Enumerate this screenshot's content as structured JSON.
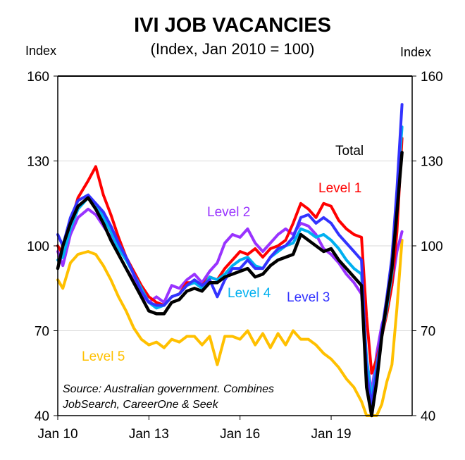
{
  "chart_data": {
    "type": "line",
    "title": "IVI JOB VACANCIES",
    "subtitle": "(Index, Jan 2010 = 100)",
    "ylabel_left": "Index",
    "ylabel_right": "Index",
    "ylim": [
      40,
      160
    ],
    "yticks": [
      40,
      70,
      100,
      130,
      160
    ],
    "xlim": [
      "2010-01",
      "2021-09"
    ],
    "xticks": [
      "Jan 10",
      "Jan 13",
      "Jan 16",
      "Jan 19"
    ],
    "grid": true,
    "source": [
      "Source: Australian government. Combines",
      "JobSearch, CareerOne & Seek"
    ],
    "series": [
      {
        "name": "Level 5",
        "color": "#FFC000",
        "x": [
          "2010-01",
          "2010-03",
          "2010-06",
          "2010-09",
          "2011-01",
          "2011-04",
          "2011-07",
          "2011-10",
          "2012-01",
          "2012-04",
          "2012-07",
          "2012-10",
          "2013-01",
          "2013-04",
          "2013-07",
          "2013-10",
          "2014-01",
          "2014-04",
          "2014-07",
          "2014-10",
          "2015-01",
          "2015-04",
          "2015-07",
          "2015-10",
          "2016-01",
          "2016-04",
          "2016-07",
          "2016-10",
          "2017-01",
          "2017-04",
          "2017-07",
          "2017-10",
          "2018-01",
          "2018-04",
          "2018-07",
          "2018-10",
          "2019-01",
          "2019-04",
          "2019-07",
          "2019-10",
          "2020-01",
          "2020-03",
          "2020-05",
          "2020-07",
          "2020-09",
          "2020-11",
          "2021-01",
          "2021-03",
          "2021-05"
        ],
        "values": [
          88,
          85,
          94,
          97,
          98,
          97,
          93,
          88,
          82,
          77,
          71,
          67,
          65,
          66,
          64,
          67,
          66,
          68,
          68,
          65,
          68,
          58,
          68,
          68,
          67,
          70,
          65,
          69,
          64,
          69,
          65,
          70,
          67,
          67,
          65,
          62,
          60,
          57,
          53,
          50,
          45,
          40,
          40,
          40,
          44,
          52,
          58,
          78,
          102
        ]
      },
      {
        "name": "Level 2",
        "color": "#9933FF",
        "x": [
          "2010-01",
          "2010-03",
          "2010-06",
          "2010-09",
          "2011-01",
          "2011-04",
          "2011-07",
          "2011-10",
          "2012-01",
          "2012-04",
          "2012-07",
          "2012-10",
          "2013-01",
          "2013-04",
          "2013-07",
          "2013-10",
          "2014-01",
          "2014-04",
          "2014-07",
          "2014-10",
          "2015-01",
          "2015-04",
          "2015-07",
          "2015-10",
          "2016-01",
          "2016-04",
          "2016-07",
          "2016-10",
          "2017-01",
          "2017-04",
          "2017-07",
          "2017-10",
          "2018-01",
          "2018-04",
          "2018-07",
          "2018-10",
          "2019-01",
          "2019-04",
          "2019-07",
          "2019-10",
          "2020-01",
          "2020-03",
          "2020-05",
          "2020-07",
          "2020-09",
          "2020-11",
          "2021-01",
          "2021-03",
          "2021-05"
        ],
        "values": [
          98,
          93,
          104,
          110,
          113,
          111,
          107,
          103,
          97,
          92,
          88,
          83,
          80,
          82,
          80,
          86,
          85,
          88,
          90,
          87,
          91,
          94,
          101,
          104,
          103,
          106,
          101,
          98,
          101,
          104,
          106,
          104,
          108,
          107,
          104,
          99,
          97,
          94,
          90,
          87,
          83,
          60,
          48,
          62,
          72,
          78,
          86,
          98,
          105
        ]
      },
      {
        "name": "Level 1",
        "color": "#FF0000",
        "x": [
          "2010-01",
          "2010-03",
          "2010-06",
          "2010-09",
          "2011-01",
          "2011-04",
          "2011-07",
          "2011-10",
          "2012-01",
          "2012-04",
          "2012-07",
          "2012-10",
          "2013-01",
          "2013-04",
          "2013-07",
          "2013-10",
          "2014-01",
          "2014-04",
          "2014-07",
          "2014-10",
          "2015-01",
          "2015-04",
          "2015-07",
          "2015-10",
          "2016-01",
          "2016-04",
          "2016-07",
          "2016-10",
          "2017-01",
          "2017-04",
          "2017-07",
          "2017-10",
          "2018-01",
          "2018-04",
          "2018-07",
          "2018-10",
          "2019-01",
          "2019-04",
          "2019-07",
          "2019-10",
          "2020-01",
          "2020-03",
          "2020-05",
          "2020-07",
          "2020-09",
          "2020-11",
          "2021-01",
          "2021-03",
          "2021-05"
        ],
        "values": [
          100,
          97,
          108,
          117,
          123,
          128,
          118,
          111,
          103,
          96,
          91,
          86,
          82,
          80,
          79,
          82,
          83,
          87,
          87,
          86,
          89,
          88,
          92,
          95,
          98,
          97,
          99,
          96,
          99,
          100,
          102,
          108,
          115,
          113,
          110,
          115,
          114,
          109,
          106,
          104,
          103,
          75,
          55,
          60,
          68,
          76,
          86,
          105,
          138
        ]
      },
      {
        "name": "Level 4",
        "color": "#00B0F0",
        "x": [
          "2010-01",
          "2010-03",
          "2010-06",
          "2010-09",
          "2011-01",
          "2011-04",
          "2011-07",
          "2011-10",
          "2012-01",
          "2012-04",
          "2012-07",
          "2012-10",
          "2013-01",
          "2013-04",
          "2013-07",
          "2013-10",
          "2014-01",
          "2014-04",
          "2014-07",
          "2014-10",
          "2015-01",
          "2015-04",
          "2015-07",
          "2015-10",
          "2016-01",
          "2016-04",
          "2016-07",
          "2016-10",
          "2017-01",
          "2017-04",
          "2017-07",
          "2017-10",
          "2018-01",
          "2018-04",
          "2018-07",
          "2018-10",
          "2019-01",
          "2019-04",
          "2019-07",
          "2019-10",
          "2020-01",
          "2020-03",
          "2020-05",
          "2020-07",
          "2020-09",
          "2020-11",
          "2021-01",
          "2021-03",
          "2021-05"
        ],
        "values": [
          95,
          96,
          106,
          113,
          117,
          115,
          110,
          105,
          99,
          95,
          90,
          85,
          80,
          78,
          79,
          82,
          83,
          86,
          87,
          85,
          89,
          88,
          90,
          93,
          95,
          96,
          93,
          92,
          96,
          98,
          100,
          101,
          106,
          105,
          103,
          104,
          102,
          99,
          95,
          92,
          90,
          60,
          46,
          58,
          68,
          78,
          90,
          118,
          142
        ]
      },
      {
        "name": "Level 3",
        "color": "#3333FF",
        "x": [
          "2010-01",
          "2010-03",
          "2010-06",
          "2010-09",
          "2011-01",
          "2011-04",
          "2011-07",
          "2011-10",
          "2012-01",
          "2012-04",
          "2012-07",
          "2012-10",
          "2013-01",
          "2013-04",
          "2013-07",
          "2013-10",
          "2014-01",
          "2014-04",
          "2014-07",
          "2014-10",
          "2015-01",
          "2015-04",
          "2015-07",
          "2015-10",
          "2016-01",
          "2016-04",
          "2016-07",
          "2016-10",
          "2017-01",
          "2017-04",
          "2017-07",
          "2017-10",
          "2018-01",
          "2018-04",
          "2018-07",
          "2018-10",
          "2019-01",
          "2019-04",
          "2019-07",
          "2019-10",
          "2020-01",
          "2020-03",
          "2020-05",
          "2020-07",
          "2020-09",
          "2020-11",
          "2021-01",
          "2021-03",
          "2021-05"
        ],
        "values": [
          104,
          100,
          110,
          116,
          118,
          115,
          112,
          107,
          101,
          96,
          90,
          84,
          80,
          79,
          79,
          82,
          83,
          86,
          88,
          86,
          88,
          82,
          88,
          92,
          92,
          95,
          92,
          92,
          96,
          99,
          100,
          103,
          110,
          111,
          108,
          110,
          108,
          104,
          101,
          98,
          95,
          55,
          44,
          56,
          70,
          82,
          96,
          120,
          150
        ]
      },
      {
        "name": "Total",
        "color": "#000000",
        "x": [
          "2010-01",
          "2010-03",
          "2010-06",
          "2010-09",
          "2011-01",
          "2011-04",
          "2011-07",
          "2011-10",
          "2012-01",
          "2012-04",
          "2012-07",
          "2012-10",
          "2013-01",
          "2013-04",
          "2013-07",
          "2013-10",
          "2014-01",
          "2014-04",
          "2014-07",
          "2014-10",
          "2015-01",
          "2015-04",
          "2015-07",
          "2015-10",
          "2016-01",
          "2016-04",
          "2016-07",
          "2016-10",
          "2017-01",
          "2017-04",
          "2017-07",
          "2017-10",
          "2018-01",
          "2018-04",
          "2018-07",
          "2018-10",
          "2019-01",
          "2019-04",
          "2019-07",
          "2019-10",
          "2020-01",
          "2020-03",
          "2020-05",
          "2020-07",
          "2020-09",
          "2020-11",
          "2021-01",
          "2021-03",
          "2021-05"
        ],
        "values": [
          92,
          100,
          108,
          114,
          117,
          113,
          108,
          102,
          97,
          92,
          87,
          82,
          77,
          76,
          76,
          80,
          81,
          84,
          85,
          84,
          87,
          87,
          89,
          90,
          91,
          92,
          89,
          90,
          93,
          95,
          96,
          97,
          104,
          102,
          100,
          98,
          99,
          95,
          92,
          89,
          86,
          50,
          40,
          52,
          68,
          80,
          92,
          112,
          133
        ]
      }
    ],
    "label_placements": {
      "Total": "near series end",
      "Level 1": "upper right",
      "Level 2": "middle",
      "Level 4": "center below lines",
      "Level 3": "right below lines",
      "Level 5": "lower left"
    }
  }
}
